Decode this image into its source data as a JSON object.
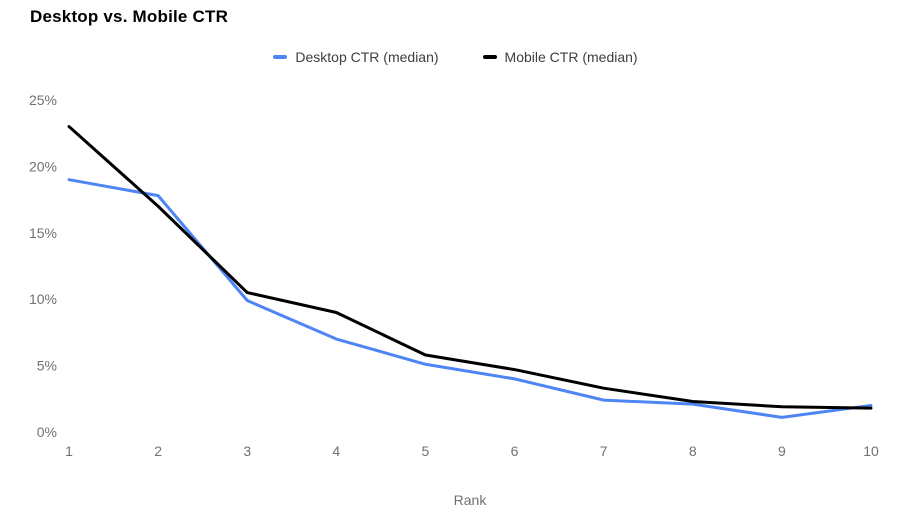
{
  "title": "Desktop vs. Mobile CTR",
  "legend": {
    "items": [
      {
        "label": "Desktop CTR (median)",
        "color": "#4e85f4"
      },
      {
        "label": "Mobile CTR (median)",
        "color": "#000000"
      }
    ]
  },
  "chart_data": {
    "type": "line",
    "title": "Desktop vs. Mobile CTR",
    "x": [
      1,
      2,
      3,
      4,
      5,
      6,
      7,
      8,
      9,
      10
    ],
    "xlabel": "Rank",
    "ylabel": "",
    "ylim": [
      0,
      25
    ],
    "yticks": [
      0,
      5,
      10,
      15,
      20,
      25
    ],
    "ytick_suffix": "%",
    "grid": false,
    "legend_position": "top",
    "series": [
      {
        "name": "Desktop CTR (median)",
        "color": "#4e85f4",
        "values": [
          19.0,
          17.8,
          9.9,
          7.0,
          5.1,
          4.0,
          2.4,
          2.1,
          1.1,
          2.0
        ]
      },
      {
        "name": "Mobile CTR (median)",
        "color": "#000000",
        "values": [
          23.0,
          17.0,
          10.5,
          9.0,
          5.8,
          4.7,
          3.3,
          2.3,
          1.9,
          1.8
        ]
      }
    ]
  }
}
